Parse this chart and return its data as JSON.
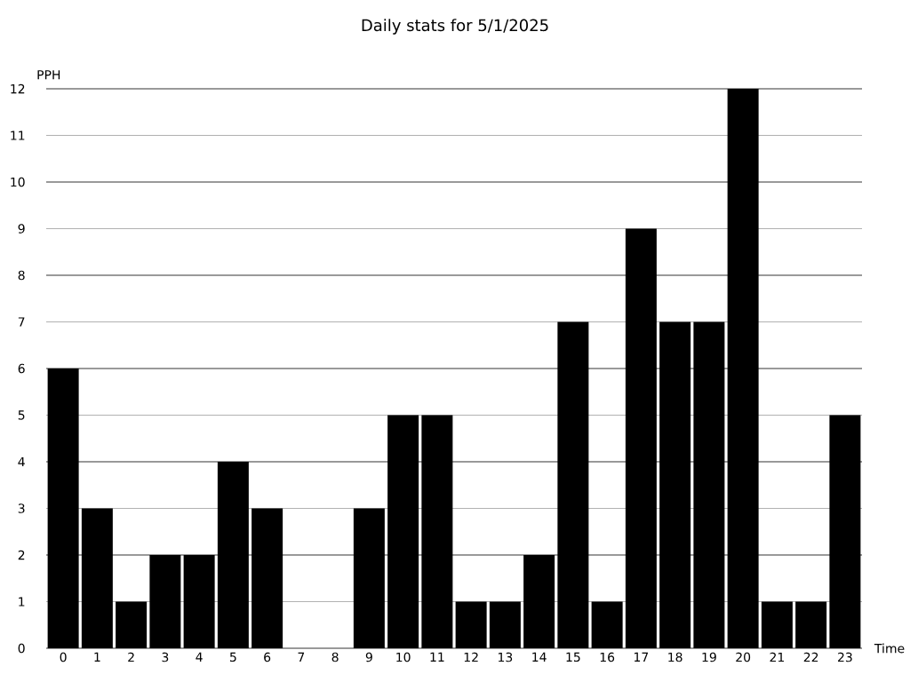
{
  "chart_data": {
    "type": "bar",
    "title": "Daily stats for 5/1/2025",
    "xlabel": "Time",
    "ylabel": "PPH",
    "categories": [
      "0",
      "1",
      "2",
      "3",
      "4",
      "5",
      "6",
      "7",
      "8",
      "9",
      "10",
      "11",
      "12",
      "13",
      "14",
      "15",
      "16",
      "17",
      "18",
      "19",
      "20",
      "21",
      "22",
      "23"
    ],
    "values": [
      6,
      3,
      1,
      2,
      2,
      4,
      3,
      0,
      0,
      3,
      5,
      5,
      1,
      1,
      2,
      7,
      1,
      9,
      7,
      7,
      12,
      1,
      1,
      5
    ],
    "color": "#000000",
    "ylim": [
      0,
      12
    ],
    "yticks": [
      0,
      1,
      2,
      3,
      4,
      5,
      6,
      7,
      8,
      9,
      10,
      11,
      12
    ],
    "grid": "y"
  }
}
